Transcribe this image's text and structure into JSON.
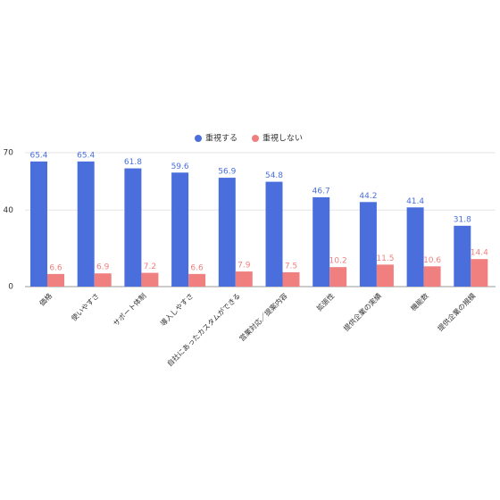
{
  "chart_data": {
    "type": "bar",
    "categories": [
      "価格",
      "使いやすさ",
      "サポート体制",
      "導入しやすさ",
      "自社にあったカスタムができる",
      "営業対応／提案内容",
      "拡張性",
      "提供企業の実績",
      "機能数",
      "提供企業の規模"
    ],
    "series": [
      {
        "name": "重視する",
        "color": "#4a6fdc",
        "values": [
          65.4,
          65.4,
          61.8,
          59.6,
          56.9,
          54.8,
          46.7,
          44.2,
          41.4,
          31.8
        ]
      },
      {
        "name": "重視しない",
        "color": "#f08080",
        "values": [
          6.6,
          6.9,
          7.2,
          6.6,
          7.9,
          7.5,
          10.2,
          11.5,
          10.6,
          14.4
        ]
      }
    ],
    "ylim": [
      0,
      70
    ],
    "yticks": [
      0,
      40,
      70
    ],
    "grid": true,
    "legend": "top"
  }
}
